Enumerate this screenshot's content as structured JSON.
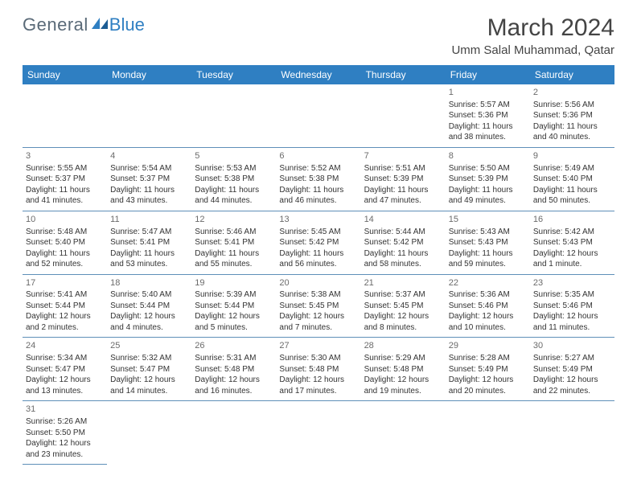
{
  "brand": {
    "name1": "General",
    "name2": "Blue"
  },
  "title": "March 2024",
  "location": "Umm Salal Muhammad, Qatar",
  "colors": {
    "header_bg": "#2f7fc2",
    "divider": "#5e8fb8",
    "logo_gray": "#5a6a78",
    "logo_blue": "#2f7fc2"
  },
  "weekdays": [
    "Sunday",
    "Monday",
    "Tuesday",
    "Wednesday",
    "Thursday",
    "Friday",
    "Saturday"
  ],
  "weeks": [
    [
      null,
      null,
      null,
      null,
      null,
      {
        "d": "1",
        "sr": "Sunrise: 5:57 AM",
        "ss": "Sunset: 5:36 PM",
        "dl1": "Daylight: 11 hours",
        "dl2": "and 38 minutes."
      },
      {
        "d": "2",
        "sr": "Sunrise: 5:56 AM",
        "ss": "Sunset: 5:36 PM",
        "dl1": "Daylight: 11 hours",
        "dl2": "and 40 minutes."
      }
    ],
    [
      {
        "d": "3",
        "sr": "Sunrise: 5:55 AM",
        "ss": "Sunset: 5:37 PM",
        "dl1": "Daylight: 11 hours",
        "dl2": "and 41 minutes."
      },
      {
        "d": "4",
        "sr": "Sunrise: 5:54 AM",
        "ss": "Sunset: 5:37 PM",
        "dl1": "Daylight: 11 hours",
        "dl2": "and 43 minutes."
      },
      {
        "d": "5",
        "sr": "Sunrise: 5:53 AM",
        "ss": "Sunset: 5:38 PM",
        "dl1": "Daylight: 11 hours",
        "dl2": "and 44 minutes."
      },
      {
        "d": "6",
        "sr": "Sunrise: 5:52 AM",
        "ss": "Sunset: 5:38 PM",
        "dl1": "Daylight: 11 hours",
        "dl2": "and 46 minutes."
      },
      {
        "d": "7",
        "sr": "Sunrise: 5:51 AM",
        "ss": "Sunset: 5:39 PM",
        "dl1": "Daylight: 11 hours",
        "dl2": "and 47 minutes."
      },
      {
        "d": "8",
        "sr": "Sunrise: 5:50 AM",
        "ss": "Sunset: 5:39 PM",
        "dl1": "Daylight: 11 hours",
        "dl2": "and 49 minutes."
      },
      {
        "d": "9",
        "sr": "Sunrise: 5:49 AM",
        "ss": "Sunset: 5:40 PM",
        "dl1": "Daylight: 11 hours",
        "dl2": "and 50 minutes."
      }
    ],
    [
      {
        "d": "10",
        "sr": "Sunrise: 5:48 AM",
        "ss": "Sunset: 5:40 PM",
        "dl1": "Daylight: 11 hours",
        "dl2": "and 52 minutes."
      },
      {
        "d": "11",
        "sr": "Sunrise: 5:47 AM",
        "ss": "Sunset: 5:41 PM",
        "dl1": "Daylight: 11 hours",
        "dl2": "and 53 minutes."
      },
      {
        "d": "12",
        "sr": "Sunrise: 5:46 AM",
        "ss": "Sunset: 5:41 PM",
        "dl1": "Daylight: 11 hours",
        "dl2": "and 55 minutes."
      },
      {
        "d": "13",
        "sr": "Sunrise: 5:45 AM",
        "ss": "Sunset: 5:42 PM",
        "dl1": "Daylight: 11 hours",
        "dl2": "and 56 minutes."
      },
      {
        "d": "14",
        "sr": "Sunrise: 5:44 AM",
        "ss": "Sunset: 5:42 PM",
        "dl1": "Daylight: 11 hours",
        "dl2": "and 58 minutes."
      },
      {
        "d": "15",
        "sr": "Sunrise: 5:43 AM",
        "ss": "Sunset: 5:43 PM",
        "dl1": "Daylight: 11 hours",
        "dl2": "and 59 minutes."
      },
      {
        "d": "16",
        "sr": "Sunrise: 5:42 AM",
        "ss": "Sunset: 5:43 PM",
        "dl1": "Daylight: 12 hours",
        "dl2": "and 1 minute."
      }
    ],
    [
      {
        "d": "17",
        "sr": "Sunrise: 5:41 AM",
        "ss": "Sunset: 5:44 PM",
        "dl1": "Daylight: 12 hours",
        "dl2": "and 2 minutes."
      },
      {
        "d": "18",
        "sr": "Sunrise: 5:40 AM",
        "ss": "Sunset: 5:44 PM",
        "dl1": "Daylight: 12 hours",
        "dl2": "and 4 minutes."
      },
      {
        "d": "19",
        "sr": "Sunrise: 5:39 AM",
        "ss": "Sunset: 5:44 PM",
        "dl1": "Daylight: 12 hours",
        "dl2": "and 5 minutes."
      },
      {
        "d": "20",
        "sr": "Sunrise: 5:38 AM",
        "ss": "Sunset: 5:45 PM",
        "dl1": "Daylight: 12 hours",
        "dl2": "and 7 minutes."
      },
      {
        "d": "21",
        "sr": "Sunrise: 5:37 AM",
        "ss": "Sunset: 5:45 PM",
        "dl1": "Daylight: 12 hours",
        "dl2": "and 8 minutes."
      },
      {
        "d": "22",
        "sr": "Sunrise: 5:36 AM",
        "ss": "Sunset: 5:46 PM",
        "dl1": "Daylight: 12 hours",
        "dl2": "and 10 minutes."
      },
      {
        "d": "23",
        "sr": "Sunrise: 5:35 AM",
        "ss": "Sunset: 5:46 PM",
        "dl1": "Daylight: 12 hours",
        "dl2": "and 11 minutes."
      }
    ],
    [
      {
        "d": "24",
        "sr": "Sunrise: 5:34 AM",
        "ss": "Sunset: 5:47 PM",
        "dl1": "Daylight: 12 hours",
        "dl2": "and 13 minutes."
      },
      {
        "d": "25",
        "sr": "Sunrise: 5:32 AM",
        "ss": "Sunset: 5:47 PM",
        "dl1": "Daylight: 12 hours",
        "dl2": "and 14 minutes."
      },
      {
        "d": "26",
        "sr": "Sunrise: 5:31 AM",
        "ss": "Sunset: 5:48 PM",
        "dl1": "Daylight: 12 hours",
        "dl2": "and 16 minutes."
      },
      {
        "d": "27",
        "sr": "Sunrise: 5:30 AM",
        "ss": "Sunset: 5:48 PM",
        "dl1": "Daylight: 12 hours",
        "dl2": "and 17 minutes."
      },
      {
        "d": "28",
        "sr": "Sunrise: 5:29 AM",
        "ss": "Sunset: 5:48 PM",
        "dl1": "Daylight: 12 hours",
        "dl2": "and 19 minutes."
      },
      {
        "d": "29",
        "sr": "Sunrise: 5:28 AM",
        "ss": "Sunset: 5:49 PM",
        "dl1": "Daylight: 12 hours",
        "dl2": "and 20 minutes."
      },
      {
        "d": "30",
        "sr": "Sunrise: 5:27 AM",
        "ss": "Sunset: 5:49 PM",
        "dl1": "Daylight: 12 hours",
        "dl2": "and 22 minutes."
      }
    ],
    [
      {
        "d": "31",
        "sr": "Sunrise: 5:26 AM",
        "ss": "Sunset: 5:50 PM",
        "dl1": "Daylight: 12 hours",
        "dl2": "and 23 minutes."
      },
      null,
      null,
      null,
      null,
      null,
      null
    ]
  ]
}
